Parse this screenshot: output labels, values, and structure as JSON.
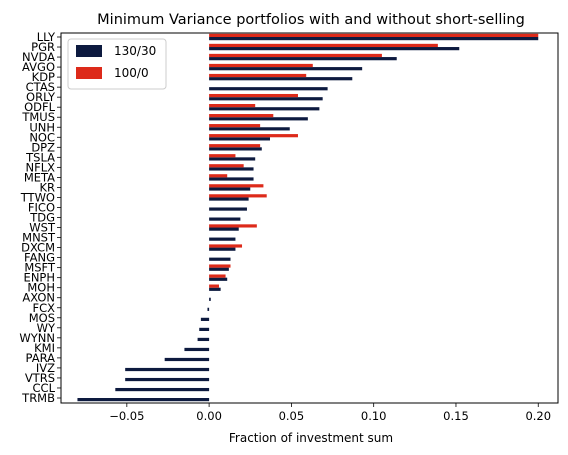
{
  "chart_data": {
    "type": "bar",
    "orientation": "horizontal",
    "title": "Minimum Variance portfolios with and without short-selling",
    "xlabel": "Fraction of investment sum",
    "ylabel": "",
    "xlim": [
      -0.09,
      0.212
    ],
    "xticks": [
      -0.05,
      0.0,
      0.05,
      0.1,
      0.15,
      0.2
    ],
    "xtick_labels": [
      "−0.05",
      "0.00",
      "0.05",
      "0.10",
      "0.15",
      "0.20"
    ],
    "grid": false,
    "legend_position": "top-left",
    "categories": [
      "LLY",
      "PGR",
      "NVDA",
      "AVGO",
      "KDP",
      "CTAS",
      "ORLY",
      "ODFL",
      "TMUS",
      "UNH",
      "NOC",
      "DPZ",
      "TSLA",
      "NFLX",
      "META",
      "KR",
      "TTWO",
      "FICO",
      "TDG",
      "WST",
      "MNST",
      "DXCM",
      "FANG",
      "MSFT",
      "ENPH",
      "MOH",
      "AXON",
      "FCX",
      "MOS",
      "WY",
      "WYNN",
      "KMI",
      "PARA",
      "IVZ",
      "VTRS",
      "CCL",
      "TRMB"
    ],
    "series": [
      {
        "name": "130/30",
        "color": "#0d1a3f",
        "values": [
          0.2,
          0.152,
          0.114,
          0.093,
          0.087,
          0.072,
          0.069,
          0.067,
          0.06,
          0.049,
          0.037,
          0.032,
          0.028,
          0.027,
          0.027,
          0.025,
          0.024,
          0.023,
          0.019,
          0.018,
          0.016,
          0.016,
          0.013,
          0.012,
          0.011,
          0.007,
          0.001,
          -0.001,
          -0.005,
          -0.006,
          -0.007,
          -0.015,
          -0.027,
          -0.051,
          -0.051,
          -0.057,
          -0.08
        ]
      },
      {
        "name": "100/0",
        "color": "#dd2a1a",
        "values": [
          0.2,
          0.139,
          0.105,
          0.063,
          0.059,
          0.0,
          0.054,
          0.028,
          0.039,
          0.031,
          0.054,
          0.031,
          0.016,
          0.021,
          0.011,
          0.033,
          0.035,
          0.0,
          0.0,
          0.029,
          0.0,
          0.02,
          0.0,
          0.013,
          0.01,
          0.006,
          0.0,
          0.0,
          0.0,
          0.0,
          0.0,
          0.0,
          0.0,
          0.0,
          0.0,
          0.0,
          0.0
        ]
      }
    ]
  }
}
